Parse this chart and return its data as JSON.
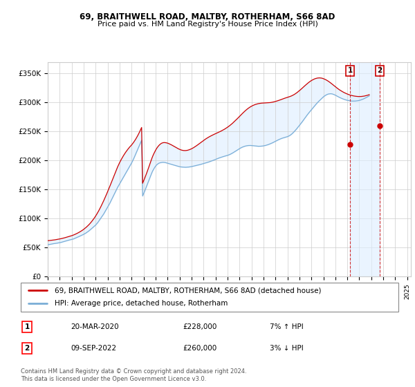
{
  "title1": "69, BRAITHWELL ROAD, MALTBY, ROTHERHAM, S66 8AD",
  "title2": "Price paid vs. HM Land Registry's House Price Index (HPI)",
  "ylabel_ticks": [
    "£0",
    "£50K",
    "£100K",
    "£150K",
    "£200K",
    "£250K",
    "£300K",
    "£350K"
  ],
  "ytick_vals": [
    0,
    50000,
    100000,
    150000,
    200000,
    250000,
    300000,
    350000
  ],
  "ylim": [
    0,
    370000
  ],
  "xlim_start": 1995.0,
  "xlim_end": 2025.3,
  "legend_line1": "69, BRAITHWELL ROAD, MALTBY, ROTHERHAM, S66 8AD (detached house)",
  "legend_line2": "HPI: Average price, detached house, Rotherham",
  "marker1_label": "1",
  "marker1_date": "20-MAR-2020",
  "marker1_price": "£228,000",
  "marker1_hpi": "7% ↑ HPI",
  "marker1_x": 2020.22,
  "marker1_y": 228000,
  "marker2_label": "2",
  "marker2_date": "09-SEP-2022",
  "marker2_price": "£260,000",
  "marker2_hpi": "3% ↓ HPI",
  "marker2_x": 2022.69,
  "marker2_y": 260000,
  "hpi_color": "#7aaed6",
  "price_color": "#cc0000",
  "shade_color": "#ddeeff",
  "vline_color": "#cc0000",
  "footnote": "Contains HM Land Registry data © Crown copyright and database right 2024.\nThis data is licensed under the Open Government Licence v3.0.",
  "hpi_x": [
    1995.0,
    1995.083,
    1995.167,
    1995.25,
    1995.333,
    1995.417,
    1995.5,
    1995.583,
    1995.667,
    1995.75,
    1995.833,
    1995.917,
    1996.0,
    1996.083,
    1996.167,
    1996.25,
    1996.333,
    1996.417,
    1996.5,
    1996.583,
    1996.667,
    1996.75,
    1996.833,
    1996.917,
    1997.0,
    1997.083,
    1997.167,
    1997.25,
    1997.333,
    1997.417,
    1997.5,
    1997.583,
    1997.667,
    1997.75,
    1997.833,
    1997.917,
    1998.0,
    1998.083,
    1998.167,
    1998.25,
    1998.333,
    1998.417,
    1998.5,
    1998.583,
    1998.667,
    1998.75,
    1998.833,
    1998.917,
    1999.0,
    1999.083,
    1999.167,
    1999.25,
    1999.333,
    1999.417,
    1999.5,
    1999.583,
    1999.667,
    1999.75,
    1999.833,
    1999.917,
    2000.0,
    2000.083,
    2000.167,
    2000.25,
    2000.333,
    2000.417,
    2000.5,
    2000.583,
    2000.667,
    2000.75,
    2000.833,
    2000.917,
    2001.0,
    2001.083,
    2001.167,
    2001.25,
    2001.333,
    2001.417,
    2001.5,
    2001.583,
    2001.667,
    2001.75,
    2001.833,
    2001.917,
    2002.0,
    2002.083,
    2002.167,
    2002.25,
    2002.333,
    2002.417,
    2002.5,
    2002.583,
    2002.667,
    2002.75,
    2002.833,
    2002.917,
    2003.0,
    2003.083,
    2003.167,
    2003.25,
    2003.333,
    2003.417,
    2003.5,
    2003.583,
    2003.667,
    2003.75,
    2003.833,
    2003.917,
    2004.0,
    2004.083,
    2004.167,
    2004.25,
    2004.333,
    2004.417,
    2004.5,
    2004.583,
    2004.667,
    2004.75,
    2004.833,
    2004.917,
    2005.0,
    2005.083,
    2005.167,
    2005.25,
    2005.333,
    2005.417,
    2005.5,
    2005.583,
    2005.667,
    2005.75,
    2005.833,
    2005.917,
    2006.0,
    2006.083,
    2006.167,
    2006.25,
    2006.333,
    2006.417,
    2006.5,
    2006.583,
    2006.667,
    2006.75,
    2006.833,
    2006.917,
    2007.0,
    2007.083,
    2007.167,
    2007.25,
    2007.333,
    2007.417,
    2007.5,
    2007.583,
    2007.667,
    2007.75,
    2007.833,
    2007.917,
    2008.0,
    2008.083,
    2008.167,
    2008.25,
    2008.333,
    2008.417,
    2008.5,
    2008.583,
    2008.667,
    2008.75,
    2008.833,
    2008.917,
    2009.0,
    2009.083,
    2009.167,
    2009.25,
    2009.333,
    2009.417,
    2009.5,
    2009.583,
    2009.667,
    2009.75,
    2009.833,
    2009.917,
    2010.0,
    2010.083,
    2010.167,
    2010.25,
    2010.333,
    2010.417,
    2010.5,
    2010.583,
    2010.667,
    2010.75,
    2010.833,
    2010.917,
    2011.0,
    2011.083,
    2011.167,
    2011.25,
    2011.333,
    2011.417,
    2011.5,
    2011.583,
    2011.667,
    2011.75,
    2011.833,
    2011.917,
    2012.0,
    2012.083,
    2012.167,
    2012.25,
    2012.333,
    2012.417,
    2012.5,
    2012.583,
    2012.667,
    2012.75,
    2012.833,
    2012.917,
    2013.0,
    2013.083,
    2013.167,
    2013.25,
    2013.333,
    2013.417,
    2013.5,
    2013.583,
    2013.667,
    2013.75,
    2013.833,
    2013.917,
    2014.0,
    2014.083,
    2014.167,
    2014.25,
    2014.333,
    2014.417,
    2014.5,
    2014.583,
    2014.667,
    2014.75,
    2014.833,
    2014.917,
    2015.0,
    2015.083,
    2015.167,
    2015.25,
    2015.333,
    2015.417,
    2015.5,
    2015.583,
    2015.667,
    2015.75,
    2015.833,
    2015.917,
    2016.0,
    2016.083,
    2016.167,
    2016.25,
    2016.333,
    2016.417,
    2016.5,
    2016.583,
    2016.667,
    2016.75,
    2016.833,
    2016.917,
    2017.0,
    2017.083,
    2017.167,
    2017.25,
    2017.333,
    2017.417,
    2017.5,
    2017.583,
    2017.667,
    2017.75,
    2017.833,
    2017.917,
    2018.0,
    2018.083,
    2018.167,
    2018.25,
    2018.333,
    2018.417,
    2018.5,
    2018.583,
    2018.667,
    2018.75,
    2018.833,
    2018.917,
    2019.0,
    2019.083,
    2019.167,
    2019.25,
    2019.333,
    2019.417,
    2019.5,
    2019.583,
    2019.667,
    2019.75,
    2019.833,
    2019.917,
    2020.0,
    2020.083,
    2020.167,
    2020.25,
    2020.333,
    2020.417,
    2020.5,
    2020.583,
    2020.667,
    2020.75,
    2020.833,
    2020.917,
    2021.0,
    2021.083,
    2021.167,
    2021.25,
    2021.333,
    2021.417,
    2021.5,
    2021.583,
    2021.667,
    2021.75,
    2021.833,
    2021.917,
    2022.0,
    2022.083,
    2022.167,
    2022.25,
    2022.333,
    2022.417,
    2022.5,
    2022.583,
    2022.667,
    2022.75,
    2022.833,
    2022.917,
    2023.0,
    2023.083,
    2023.167,
    2023.25,
    2023.333,
    2023.417,
    2023.5,
    2023.583,
    2023.667,
    2023.75,
    2023.833,
    2023.917,
    2024.0,
    2024.083,
    2024.167,
    2024.25,
    2024.333,
    2024.417,
    2024.5,
    2024.583,
    2024.667,
    2024.75,
    2024.833,
    2024.917
  ],
  "hpi_y": [
    55000,
    55300,
    55600,
    56000,
    56300,
    56700,
    57000,
    57200,
    57500,
    57700,
    58000,
    58300,
    58600,
    59000,
    59500,
    60000,
    60500,
    61000,
    61500,
    62000,
    62500,
    63000,
    63400,
    63800,
    64200,
    64700,
    65200,
    66000,
    66800,
    67500,
    68200,
    69000,
    69800,
    70600,
    71400,
    72200,
    73000,
    74000,
    75000,
    76200,
    77400,
    78600,
    80000,
    81500,
    83000,
    84500,
    86000,
    87500,
    89000,
    91000,
    93000,
    95500,
    98000,
    100500,
    103000,
    105500,
    108000,
    111000,
    114000,
    117000,
    120000,
    123000,
    126000,
    129500,
    133000,
    136500,
    140000,
    143500,
    147000,
    150500,
    154000,
    157000,
    160000,
    163000,
    166000,
    169000,
    172000,
    175000,
    178000,
    181000,
    184000,
    187000,
    190000,
    193000,
    196000,
    199500,
    203000,
    207000,
    211000,
    215000,
    219000,
    223000,
    227000,
    231000,
    235000,
    139000,
    143000,
    147000,
    151500,
    156000,
    160500,
    165000,
    169500,
    174000,
    178000,
    182000,
    185000,
    188000,
    190500,
    192500,
    194000,
    195200,
    196000,
    196500,
    196800,
    197000,
    197000,
    196800,
    196500,
    196000,
    195500,
    195000,
    194500,
    194000,
    193500,
    193000,
    192500,
    192000,
    191500,
    191000,
    190500,
    190000,
    189500,
    189200,
    189000,
    188800,
    188700,
    188600,
    188500,
    188600,
    188700,
    188900,
    189100,
    189400,
    189700,
    190100,
    190500,
    190900,
    191300,
    191700,
    192100,
    192500,
    192900,
    193400,
    193900,
    194400,
    194900,
    195400,
    195900,
    196400,
    196900,
    197500,
    198100,
    198700,
    199300,
    200000,
    200700,
    201400,
    202100,
    202800,
    203500,
    204200,
    204800,
    205400,
    206000,
    206500,
    207000,
    207500,
    208000,
    208500,
    209000,
    209600,
    210300,
    211100,
    212000,
    213000,
    214000,
    215100,
    216200,
    217300,
    218400,
    219500,
    220600,
    221600,
    222500,
    223300,
    224000,
    224600,
    225100,
    225500,
    225800,
    226000,
    226100,
    226100,
    226000,
    225800,
    225600,
    225300,
    225100,
    224900,
    224800,
    224700,
    224700,
    224800,
    224900,
    225100,
    225400,
    225700,
    226100,
    226600,
    227100,
    227700,
    228400,
    229100,
    229800,
    230600,
    231500,
    232400,
    233300,
    234200,
    235100,
    235900,
    236700,
    237400,
    238100,
    238700,
    239200,
    239700,
    240200,
    240700,
    241300,
    242000,
    242900,
    244000,
    245300,
    246800,
    248500,
    250300,
    252200,
    254200,
    256300,
    258400,
    260600,
    262800,
    265000,
    267300,
    269600,
    272000,
    274400,
    276800,
    279100,
    281300,
    283400,
    285500,
    287600,
    289700,
    291800,
    293900,
    295900,
    297800,
    299700,
    301500,
    303200,
    305000,
    306700,
    308300,
    309800,
    311100,
    312300,
    313300,
    314100,
    314700,
    315000,
    315200,
    315100,
    314800,
    314200,
    313500,
    312700,
    311800,
    310800,
    309900,
    309000,
    308200,
    307400,
    306700,
    306000,
    305400,
    304800,
    304300,
    303900,
    303500,
    303100,
    302800,
    302600,
    302500,
    302500,
    302500,
    302600,
    302800,
    303000,
    303300,
    303700,
    304200,
    304800,
    305400,
    306100,
    306900,
    307800,
    308700,
    309600,
    310600,
    311600
  ],
  "price_x": [
    1995.0,
    1995.083,
    1995.167,
    1995.25,
    1995.333,
    1995.417,
    1995.5,
    1995.583,
    1995.667,
    1995.75,
    1995.833,
    1995.917,
    1996.0,
    1996.083,
    1996.167,
    1996.25,
    1996.333,
    1996.417,
    1996.5,
    1996.583,
    1996.667,
    1996.75,
    1996.833,
    1996.917,
    1997.0,
    1997.083,
    1997.167,
    1997.25,
    1997.333,
    1997.417,
    1997.5,
    1997.583,
    1997.667,
    1997.75,
    1997.833,
    1997.917,
    1998.0,
    1998.083,
    1998.167,
    1998.25,
    1998.333,
    1998.417,
    1998.5,
    1998.583,
    1998.667,
    1998.75,
    1998.833,
    1998.917,
    1999.0,
    1999.083,
    1999.167,
    1999.25,
    1999.333,
    1999.417,
    1999.5,
    1999.583,
    1999.667,
    1999.75,
    1999.833,
    1999.917,
    2000.0,
    2000.083,
    2000.167,
    2000.25,
    2000.333,
    2000.417,
    2000.5,
    2000.583,
    2000.667,
    2000.75,
    2000.833,
    2000.917,
    2001.0,
    2001.083,
    2001.167,
    2001.25,
    2001.333,
    2001.417,
    2001.5,
    2001.583,
    2001.667,
    2001.75,
    2001.833,
    2001.917,
    2002.0,
    2002.083,
    2002.167,
    2002.25,
    2002.333,
    2002.417,
    2002.5,
    2002.583,
    2002.667,
    2002.75,
    2002.833,
    2002.917,
    2003.0,
    2003.083,
    2003.167,
    2003.25,
    2003.333,
    2003.417,
    2003.5,
    2003.583,
    2003.667,
    2003.75,
    2003.833,
    2003.917,
    2004.0,
    2004.083,
    2004.167,
    2004.25,
    2004.333,
    2004.417,
    2004.5,
    2004.583,
    2004.667,
    2004.75,
    2004.833,
    2004.917,
    2005.0,
    2005.083,
    2005.167,
    2005.25,
    2005.333,
    2005.417,
    2005.5,
    2005.583,
    2005.667,
    2005.75,
    2005.833,
    2005.917,
    2006.0,
    2006.083,
    2006.167,
    2006.25,
    2006.333,
    2006.417,
    2006.5,
    2006.583,
    2006.667,
    2006.75,
    2006.833,
    2006.917,
    2007.0,
    2007.083,
    2007.167,
    2007.25,
    2007.333,
    2007.417,
    2007.5,
    2007.583,
    2007.667,
    2007.75,
    2007.833,
    2007.917,
    2008.0,
    2008.083,
    2008.167,
    2008.25,
    2008.333,
    2008.417,
    2008.5,
    2008.583,
    2008.667,
    2008.75,
    2008.833,
    2008.917,
    2009.0,
    2009.083,
    2009.167,
    2009.25,
    2009.333,
    2009.417,
    2009.5,
    2009.583,
    2009.667,
    2009.75,
    2009.833,
    2009.917,
    2010.0,
    2010.083,
    2010.167,
    2010.25,
    2010.333,
    2010.417,
    2010.5,
    2010.583,
    2010.667,
    2010.75,
    2010.833,
    2010.917,
    2011.0,
    2011.083,
    2011.167,
    2011.25,
    2011.333,
    2011.417,
    2011.5,
    2011.583,
    2011.667,
    2011.75,
    2011.833,
    2011.917,
    2012.0,
    2012.083,
    2012.167,
    2012.25,
    2012.333,
    2012.417,
    2012.5,
    2012.583,
    2012.667,
    2012.75,
    2012.833,
    2012.917,
    2013.0,
    2013.083,
    2013.167,
    2013.25,
    2013.333,
    2013.417,
    2013.5,
    2013.583,
    2013.667,
    2013.75,
    2013.833,
    2013.917,
    2014.0,
    2014.083,
    2014.167,
    2014.25,
    2014.333,
    2014.417,
    2014.5,
    2014.583,
    2014.667,
    2014.75,
    2014.833,
    2014.917,
    2015.0,
    2015.083,
    2015.167,
    2015.25,
    2015.333,
    2015.417,
    2015.5,
    2015.583,
    2015.667,
    2015.75,
    2015.833,
    2015.917,
    2016.0,
    2016.083,
    2016.167,
    2016.25,
    2016.333,
    2016.417,
    2016.5,
    2016.583,
    2016.667,
    2016.75,
    2016.833,
    2016.917,
    2017.0,
    2017.083,
    2017.167,
    2017.25,
    2017.333,
    2017.417,
    2017.5,
    2017.583,
    2017.667,
    2017.75,
    2017.833,
    2017.917,
    2018.0,
    2018.083,
    2018.167,
    2018.25,
    2018.333,
    2018.417,
    2018.5,
    2018.583,
    2018.667,
    2018.75,
    2018.833,
    2018.917,
    2019.0,
    2019.083,
    2019.167,
    2019.25,
    2019.333,
    2019.417,
    2019.5,
    2019.583,
    2019.667,
    2019.75,
    2019.833,
    2019.917,
    2020.0,
    2020.083,
    2020.167,
    2020.25,
    2020.333,
    2020.417,
    2020.5,
    2020.583,
    2020.667,
    2020.75,
    2020.833,
    2020.917,
    2021.0,
    2021.083,
    2021.167,
    2021.25,
    2021.333,
    2021.417,
    2021.5,
    2021.583,
    2021.667,
    2021.75,
    2021.833,
    2021.917,
    2022.0,
    2022.083,
    2022.167,
    2022.25,
    2022.333,
    2022.417,
    2022.5,
    2022.583,
    2022.667,
    2022.75,
    2022.833,
    2022.917,
    2023.0,
    2023.083,
    2023.167,
    2023.25,
    2023.333,
    2023.417,
    2023.5,
    2023.583,
    2023.667,
    2023.75,
    2023.833,
    2023.917,
    2024.0,
    2024.083,
    2024.167,
    2024.25,
    2024.333,
    2024.417,
    2024.5,
    2024.583,
    2024.667,
    2024.75,
    2024.833,
    2024.917
  ],
  "price_y": [
    62000,
    62200,
    62400,
    62600,
    62800,
    63000,
    63200,
    63500,
    63800,
    64100,
    64400,
    64700,
    65000,
    65400,
    65800,
    66200,
    66600,
    67100,
    67600,
    68100,
    68600,
    69100,
    69600,
    70100,
    70700,
    71300,
    72000,
    72700,
    73500,
    74300,
    75200,
    76100,
    77100,
    78100,
    79200,
    80400,
    81600,
    83000,
    84400,
    85900,
    87500,
    89200,
    91000,
    93000,
    95100,
    97300,
    99600,
    102000,
    104600,
    107400,
    110300,
    113400,
    116600,
    120000,
    123500,
    127100,
    130800,
    134600,
    138500,
    142500,
    146600,
    150700,
    154900,
    159200,
    163500,
    167900,
    172300,
    176700,
    181000,
    185200,
    189200,
    193000,
    196600,
    199900,
    203100,
    206100,
    209000,
    211700,
    214300,
    216700,
    219000,
    221200,
    223300,
    225200,
    227000,
    229200,
    231500,
    234000,
    236700,
    239600,
    242700,
    246000,
    249500,
    253200,
    257100,
    161000,
    165000,
    169200,
    173600,
    178200,
    182900,
    187800,
    192800,
    197900,
    202600,
    207100,
    211000,
    214600,
    217900,
    220800,
    223300,
    225500,
    227300,
    228800,
    229900,
    230600,
    231000,
    231100,
    230900,
    230600,
    230100,
    229500,
    228700,
    227900,
    227000,
    226000,
    225000,
    224000,
    223000,
    222000,
    221100,
    220200,
    219400,
    218700,
    218100,
    217700,
    217400,
    217300,
    217300,
    217500,
    217800,
    218300,
    218900,
    219600,
    220400,
    221300,
    222300,
    223400,
    224500,
    225700,
    226900,
    228200,
    229500,
    230800,
    232100,
    233400,
    234700,
    235900,
    237100,
    238200,
    239300,
    240300,
    241300,
    242200,
    243100,
    244000,
    244800,
    245600,
    246400,
    247200,
    248000,
    248800,
    249600,
    250400,
    251300,
    252200,
    253100,
    254100,
    255200,
    256300,
    257500,
    258700,
    260000,
    261400,
    262800,
    264300,
    265900,
    267500,
    269100,
    270800,
    272500,
    274300,
    276000,
    277800,
    279600,
    281300,
    283000,
    284600,
    286200,
    287700,
    289100,
    290400,
    291600,
    292700,
    293700,
    294600,
    295400,
    296100,
    296800,
    297300,
    297800,
    298200,
    298500,
    298800,
    299000,
    299100,
    299200,
    299300,
    299300,
    299400,
    299500,
    299600,
    299800,
    300000,
    300300,
    300600,
    301000,
    301400,
    301900,
    302400,
    302900,
    303500,
    304100,
    304700,
    305400,
    306000,
    306700,
    307300,
    307900,
    308400,
    309000,
    309500,
    310100,
    310700,
    311400,
    312200,
    313100,
    314100,
    315200,
    316400,
    317700,
    319100,
    320500,
    322000,
    323500,
    325100,
    326700,
    328300,
    329800,
    331300,
    332800,
    334200,
    335500,
    336800,
    337900,
    338900,
    339800,
    340600,
    341300,
    341800,
    342200,
    342400,
    342500,
    342400,
    342200,
    341800,
    341200,
    340500,
    339700,
    338800,
    337800,
    336700,
    335500,
    334200,
    332900,
    331500,
    330100,
    328700,
    327300,
    325900,
    324600,
    323300,
    322100,
    321000,
    319900,
    318900,
    317900,
    317000,
    316200,
    315400,
    314700,
    314000,
    313400,
    312800,
    312300,
    311900,
    311500,
    311200,
    310900,
    310700,
    310500,
    310400,
    310400,
    310400,
    310500,
    310700,
    310900,
    311200,
    311600,
    312000,
    312500,
    313000,
    313600
  ],
  "xticks": [
    1995,
    1996,
    1997,
    1998,
    1999,
    2000,
    2001,
    2002,
    2003,
    2004,
    2005,
    2006,
    2007,
    2008,
    2009,
    2010,
    2011,
    2012,
    2013,
    2014,
    2015,
    2016,
    2017,
    2018,
    2019,
    2020,
    2021,
    2022,
    2023,
    2024,
    2025
  ]
}
